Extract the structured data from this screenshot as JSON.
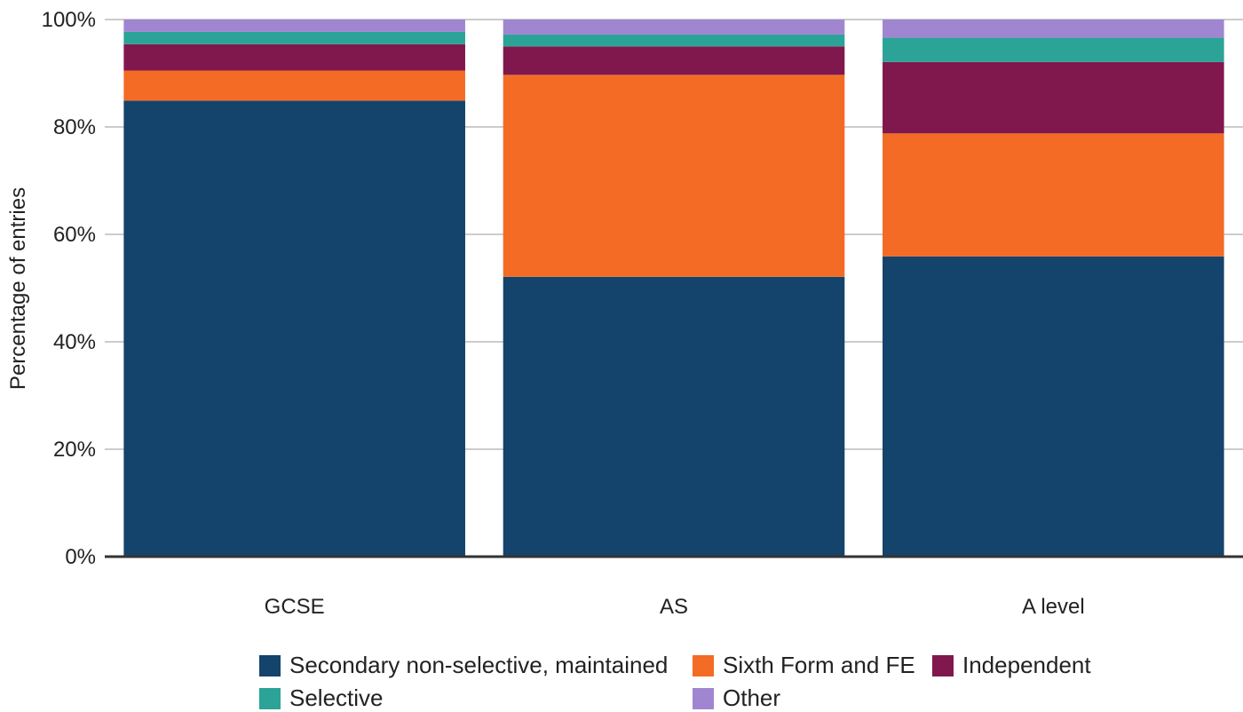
{
  "chart_data": {
    "type": "bar",
    "stacked": true,
    "categories": [
      "GCSE",
      "AS",
      "A level"
    ],
    "series": [
      {
        "name": "Secondary non-selective, maintained",
        "color": "#14436b",
        "values": [
          84.9,
          52.1,
          55.9
        ]
      },
      {
        "name": "Sixth Form and FE",
        "color": "#f36b25",
        "values": [
          5.6,
          37.6,
          22.9
        ]
      },
      {
        "name": "Independent",
        "color": "#80184d",
        "values": [
          4.9,
          5.3,
          13.3
        ]
      },
      {
        "name": "Selective",
        "color": "#2ba396",
        "values": [
          2.3,
          2.2,
          4.5
        ]
      },
      {
        "name": "Other",
        "color": "#a086d1",
        "values": [
          2.3,
          2.8,
          3.4
        ]
      }
    ],
    "ylabel": "Percentage of entries",
    "xlabel": "",
    "ylim": [
      0,
      100
    ],
    "yticks": [
      "0%",
      "20%",
      "40%",
      "60%",
      "80%",
      "100%"
    ],
    "grid": true,
    "legend_position": "bottom"
  }
}
